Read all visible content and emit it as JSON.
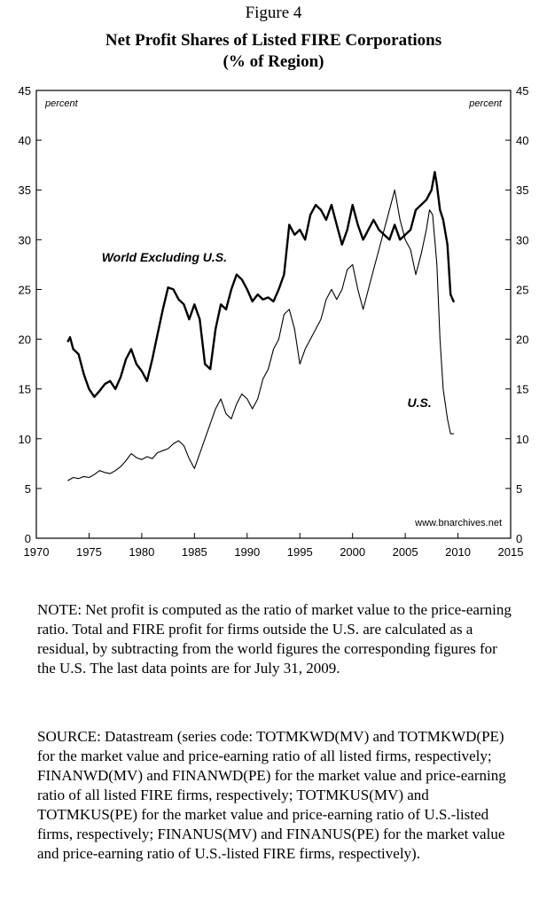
{
  "figure_label": "Figure 4",
  "title_line1": "Net Profit Shares of Listed FIRE Corporations",
  "title_line2": "(% of Region)",
  "chart_data": {
    "type": "line",
    "xlim": [
      1970,
      2015
    ],
    "ylim": [
      0,
      45
    ],
    "x_ticks": [
      "1970",
      "1975",
      "1980",
      "1985",
      "1990",
      "1995",
      "2000",
      "2005",
      "2010",
      "2015"
    ],
    "y_ticks": [
      "0",
      "5",
      "10",
      "15",
      "20",
      "25",
      "30",
      "35",
      "40",
      "45"
    ],
    "y_unit_left": "percent",
    "y_unit_right": "percent",
    "watermark": "www.bnarchives.net",
    "grid": false,
    "series": [
      {
        "name": "World Excluding U.S.",
        "label_position": "upper-left",
        "stroke_width": 2.4,
        "x": [
          1973.0,
          1973.2,
          1973.5,
          1974.0,
          1974.5,
          1975.0,
          1975.5,
          1976.0,
          1976.5,
          1977.0,
          1977.5,
          1978.0,
          1978.5,
          1979.0,
          1979.5,
          1980.0,
          1980.5,
          1981.0,
          1981.5,
          1982.0,
          1982.5,
          1983.0,
          1983.5,
          1984.0,
          1984.5,
          1985.0,
          1985.5,
          1986.0,
          1986.5,
          1987.0,
          1987.5,
          1988.0,
          1988.5,
          1989.0,
          1989.5,
          1990.0,
          1990.5,
          1991.0,
          1991.5,
          1992.0,
          1992.5,
          1993.0,
          1993.5,
          1994.0,
          1994.5,
          1995.0,
          1995.5,
          1996.0,
          1996.5,
          1997.0,
          1997.5,
          1998.0,
          1998.5,
          1999.0,
          1999.5,
          2000.0,
          2000.5,
          2001.0,
          2001.5,
          2002.0,
          2002.5,
          2003.0,
          2003.5,
          2004.0,
          2004.5,
          2005.0,
          2005.5,
          2006.0,
          2006.5,
          2007.0,
          2007.5,
          2007.8,
          2008.0,
          2008.3,
          2008.6,
          2009.0,
          2009.3,
          2009.58
        ],
        "values": [
          19.8,
          20.2,
          19.0,
          18.5,
          16.5,
          15.0,
          14.2,
          14.8,
          15.5,
          15.8,
          15.0,
          16.2,
          18.0,
          19.0,
          17.5,
          16.8,
          15.8,
          18.0,
          20.5,
          23.0,
          25.2,
          25.0,
          24.0,
          23.5,
          22.0,
          23.5,
          22.0,
          17.5,
          17.0,
          21.0,
          23.5,
          23.0,
          25.0,
          26.5,
          26.0,
          25.0,
          23.8,
          24.5,
          24.0,
          24.2,
          23.8,
          25.0,
          26.5,
          31.5,
          30.5,
          31.0,
          30.0,
          32.5,
          33.5,
          33.0,
          32.0,
          33.5,
          31.5,
          29.5,
          31.0,
          33.5,
          31.5,
          30.0,
          31.0,
          32.0,
          31.0,
          30.5,
          30.0,
          31.5,
          30.0,
          30.5,
          31.0,
          33.0,
          33.5,
          34.0,
          35.0,
          36.8,
          35.5,
          33.0,
          32.0,
          29.5,
          24.5,
          23.8
        ]
      },
      {
        "name": "U.S.",
        "label_position": "right",
        "stroke_width": 1.1,
        "x": [
          1973.0,
          1973.5,
          1974.0,
          1974.5,
          1975.0,
          1975.5,
          1976.0,
          1976.5,
          1977.0,
          1977.5,
          1978.0,
          1978.5,
          1979.0,
          1979.5,
          1980.0,
          1980.5,
          1981.0,
          1981.5,
          1982.0,
          1982.5,
          1983.0,
          1983.5,
          1984.0,
          1984.5,
          1985.0,
          1985.5,
          1986.0,
          1986.5,
          1987.0,
          1987.5,
          1988.0,
          1988.5,
          1989.0,
          1989.5,
          1990.0,
          1990.5,
          1991.0,
          1991.5,
          1992.0,
          1992.5,
          1993.0,
          1993.5,
          1994.0,
          1994.5,
          1995.0,
          1995.5,
          1996.0,
          1996.5,
          1997.0,
          1997.5,
          1998.0,
          1998.5,
          1999.0,
          1999.5,
          2000.0,
          2000.5,
          2001.0,
          2001.5,
          2002.0,
          2002.5,
          2003.0,
          2003.5,
          2004.0,
          2004.5,
          2005.0,
          2005.5,
          2006.0,
          2006.5,
          2007.0,
          2007.3,
          2007.6,
          2007.8,
          2008.0,
          2008.3,
          2008.6,
          2009.0,
          2009.3,
          2009.58
        ],
        "values": [
          5.8,
          6.1,
          6.0,
          6.2,
          6.1,
          6.4,
          6.8,
          6.6,
          6.5,
          6.8,
          7.2,
          7.8,
          8.5,
          8.1,
          7.9,
          8.2,
          8.0,
          8.6,
          8.8,
          9.0,
          9.5,
          9.8,
          9.3,
          8.0,
          7.0,
          8.5,
          10.0,
          11.5,
          13.0,
          14.0,
          12.5,
          12.0,
          13.5,
          14.5,
          14.0,
          13.0,
          14.0,
          16.0,
          17.0,
          19.0,
          20.0,
          22.5,
          23.0,
          21.0,
          17.5,
          19.0,
          20.0,
          21.0,
          22.0,
          24.0,
          25.0,
          24.0,
          25.0,
          27.0,
          27.5,
          25.0,
          23.0,
          25.0,
          27.0,
          29.0,
          31.0,
          33.0,
          35.0,
          32.0,
          30.0,
          29.0,
          26.5,
          28.5,
          31.0,
          33.0,
          32.5,
          30.0,
          27.5,
          20.0,
          15.0,
          12.0,
          10.5,
          10.5
        ]
      }
    ]
  },
  "note_text": "NOTE: Net profit is computed as the ratio of market value to the price-earning ratio. Total and FIRE profit for firms outside the U.S. are calculated as a residual, by subtracting from the world figures the corresponding figures for the U.S. The last data points are for July 31, 2009.",
  "source_text": "SOURCE: Datastream (series code: TOTMKWD(MV) and TOTMKWD(PE) for the market value and price-earning ratio of all listed firms, respectively;  FINANWD(MV) and FINANWD(PE) for the market value and price-earning ratio of all listed FIRE firms, respectively;  TOTMKUS(MV) and TOTMKUS(PE) for the market value and price-earning ratio of U.S.-listed firms, respectively; FINANUS(MV) and FINANUS(PE) for the market value and price-earning ratio of U.S.-listed FIRE firms, respectively)."
}
